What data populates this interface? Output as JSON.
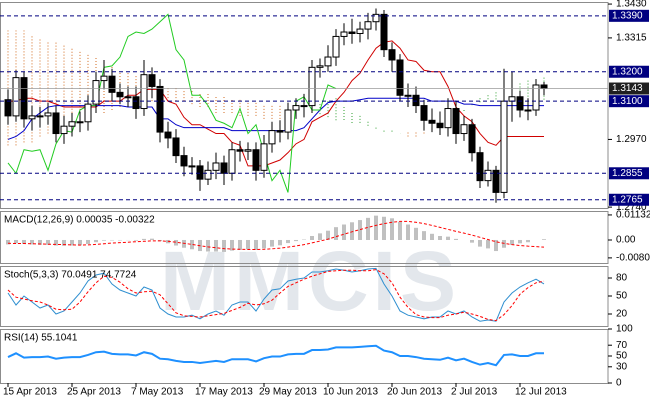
{
  "chart_data": [
    {
      "type": "candlestick",
      "watermark": "MMCIS",
      "categories": [
        "15 Apr 2013",
        null,
        null,
        null,
        null,
        null,
        null,
        null,
        "25 Apr 2013",
        null,
        null,
        null,
        null,
        null,
        null,
        null,
        "7 May 2013",
        null,
        null,
        null,
        null,
        null,
        null,
        null,
        "17 May 2013",
        null,
        null,
        null,
        null,
        null,
        null,
        null,
        "29 May 2013",
        null,
        null,
        null,
        null,
        null,
        null,
        null,
        "10 Jun 2013",
        null,
        null,
        null,
        null,
        null,
        null,
        null,
        "20 Jun 2013",
        null,
        null,
        null,
        null,
        null,
        null,
        null,
        "2 Jul 2013",
        null,
        null,
        null,
        null,
        null,
        null,
        null,
        "12 Jul 2013",
        null,
        null,
        null
      ],
      "open": [
        1.3105,
        1.305,
        1.318,
        1.304,
        1.305,
        1.305,
        1.306,
        1.299,
        1.3015,
        1.303,
        1.303,
        1.309,
        1.317,
        1.3185,
        1.313,
        1.3115,
        1.3115,
        1.3075,
        1.319,
        1.315,
        1.2995,
        1.2975,
        1.2915,
        1.288,
        1.288,
        1.2835,
        1.2865,
        1.289,
        1.2855,
        1.2935,
        1.293,
        1.2935,
        1.2865,
        1.2955,
        1.3,
        1.2995,
        1.307,
        1.3085,
        1.3085,
        1.3215,
        1.322,
        1.325,
        1.332,
        1.3335,
        1.333,
        1.3345,
        1.337,
        1.3395,
        1.3275,
        1.324,
        1.312,
        1.312,
        1.3085,
        1.3035,
        1.3025,
        1.301,
        1.3075,
        1.299,
        1.302,
        1.2925,
        1.283,
        1.2865,
        1.279,
        1.31,
        1.3115,
        1.307,
        1.307,
        1.3155
      ],
      "high": [
        1.314,
        1.3205,
        1.32,
        1.3085,
        1.308,
        1.3095,
        1.3085,
        1.305,
        1.306,
        1.3065,
        1.312,
        1.32,
        1.324,
        1.321,
        1.316,
        1.315,
        1.315,
        1.324,
        1.3215,
        1.3175,
        1.303,
        1.3005,
        1.2945,
        1.291,
        1.29,
        1.2895,
        1.2925,
        1.2915,
        1.296,
        1.2965,
        1.296,
        1.296,
        1.2985,
        1.303,
        1.3035,
        1.3095,
        1.311,
        1.3125,
        1.324,
        1.3245,
        1.329,
        1.3345,
        1.3365,
        1.338,
        1.337,
        1.34,
        1.3415,
        1.341,
        1.33,
        1.326,
        1.316,
        1.315,
        1.3105,
        1.3075,
        1.3065,
        1.311,
        1.31,
        1.305,
        1.304,
        1.2945,
        1.2895,
        1.288,
        1.321,
        1.32,
        1.3135,
        1.311,
        1.3175,
        1.3165
      ],
      "low": [
        1.302,
        1.303,
        1.301,
        1.3,
        1.301,
        1.302,
        1.296,
        1.2955,
        1.298,
        1.2995,
        1.3,
        1.306,
        1.314,
        1.31,
        1.309,
        1.308,
        1.304,
        1.305,
        1.311,
        1.296,
        1.294,
        1.289,
        1.2845,
        1.285,
        1.2795,
        1.2815,
        1.2835,
        1.2815,
        1.283,
        1.2895,
        1.29,
        1.283,
        1.284,
        1.2925,
        1.296,
        1.297,
        1.304,
        1.3045,
        1.306,
        1.318,
        1.32,
        1.322,
        1.329,
        1.3295,
        1.33,
        1.331,
        1.334,
        1.325,
        1.32,
        1.31,
        1.308,
        1.306,
        1.3,
        1.2995,
        1.2985,
        1.298,
        1.2955,
        1.2965,
        1.2895,
        1.2805,
        1.281,
        1.2755,
        1.277,
        1.303,
        1.3045,
        1.3035,
        1.305,
        1.312
      ],
      "close": [
        1.305,
        1.318,
        1.304,
        1.305,
        1.305,
        1.306,
        1.299,
        1.3015,
        1.303,
        1.303,
        1.309,
        1.317,
        1.3185,
        1.313,
        1.3115,
        1.3115,
        1.3075,
        1.319,
        1.315,
        1.2995,
        1.2975,
        1.2915,
        1.288,
        1.288,
        1.2835,
        1.2865,
        1.289,
        1.2855,
        1.2935,
        1.293,
        1.2935,
        1.2865,
        1.2955,
        1.3,
        1.2995,
        1.307,
        1.3085,
        1.3085,
        1.3215,
        1.322,
        1.325,
        1.332,
        1.3335,
        1.333,
        1.3345,
        1.337,
        1.3395,
        1.3275,
        1.324,
        1.312,
        1.312,
        1.3085,
        1.3035,
        1.3025,
        1.301,
        1.3075,
        1.299,
        1.302,
        1.2925,
        1.283,
        1.2865,
        1.279,
        1.31,
        1.3115,
        1.307,
        1.307,
        1.3155,
        1.3143
      ],
      "up_color": "#ffffff",
      "down_color": "#000000",
      "cloud": {
        "up_color": "#2e9e2e",
        "down_color": "#d2691e",
        "span_a": [
          1.295,
          1.295,
          1.296,
          1.296,
          1.298,
          1.299,
          1.3,
          1.301,
          1.303,
          1.304,
          1.305,
          1.306,
          1.306,
          1.307,
          1.308,
          1.309,
          1.309,
          1.31,
          1.31,
          1.31,
          1.31,
          1.31,
          1.31,
          1.309,
          1.308,
          1.308,
          1.306,
          1.306,
          1.306,
          1.305,
          1.305,
          1.305,
          1.304,
          1.304,
          1.304,
          1.305,
          1.306,
          1.307,
          1.308,
          1.309,
          1.31,
          1.311,
          1.308,
          1.306,
          1.305,
          1.303,
          1.301,
          1.3,
          1.3,
          1.299,
          1.298,
          1.298,
          1.299,
          1.3,
          1.301,
          1.303,
          1.305,
          1.307,
          1.309,
          1.311,
          1.312,
          1.313,
          1.314,
          1.315,
          1.316,
          1.317,
          1.3175,
          1.318
        ],
        "span_b": [
          1.334,
          1.334,
          1.334,
          1.332,
          1.331,
          1.33,
          1.33,
          1.329,
          1.328,
          1.327,
          1.326,
          1.325,
          1.323,
          1.322,
          1.32,
          1.32,
          1.319,
          1.318,
          1.317,
          1.316,
          1.315,
          1.315,
          1.314,
          1.314,
          1.313,
          1.313,
          1.312,
          1.312,
          1.311,
          1.311,
          1.31,
          1.31,
          1.309,
          1.309,
          1.3085,
          1.308,
          1.308,
          1.307,
          1.306,
          1.305,
          1.304,
          1.303,
          1.303,
          1.302,
          1.302,
          1.301,
          1.3,
          1.299,
          1.299,
          1.299,
          1.3,
          1.3,
          1.301,
          1.302,
          1.303,
          1.304,
          1.305,
          1.306,
          1.308,
          1.309,
          1.31,
          1.31,
          1.31,
          1.31,
          1.31,
          1.31,
          1.31,
          1.31
        ]
      },
      "lines": [
        {
          "color": "#d00000",
          "values": [
            1.31,
            1.31,
            1.311,
            1.311,
            1.31,
            1.31,
            1.309,
            1.308,
            1.308,
            1.308,
            1.308,
            1.308,
            1.31,
            1.31,
            1.31,
            1.312,
            1.312,
            1.314,
            1.314,
            1.314,
            1.31,
            1.309,
            1.3045,
            1.302,
            1.302,
            1.3005,
            1.299,
            1.299,
            1.296,
            1.295,
            1.288,
            1.288,
            1.288,
            1.289,
            1.29,
            1.2925,
            1.2955,
            1.297,
            1.303,
            1.3045,
            1.306,
            1.31,
            1.313,
            1.317,
            1.3195,
            1.324,
            1.328,
            1.33,
            1.3305,
            1.328,
            1.324,
            1.3235,
            1.3205,
            1.32,
            1.32,
            1.315,
            1.308,
            1.305,
            1.303,
            1.299,
            1.296,
            1.295,
            1.298,
            1.298,
            1.298,
            1.298,
            1.298,
            1.298
          ]
        },
        {
          "color": "#0000c8",
          "values": [
            1.297,
            1.298,
            1.3,
            1.304,
            1.306,
            1.308,
            1.3085,
            1.3085,
            1.3085,
            1.3085,
            1.3085,
            1.3085,
            1.3085,
            1.3085,
            1.3085,
            1.308,
            1.308,
            1.308,
            1.308,
            1.304,
            1.304,
            1.302,
            1.301,
            1.301,
            1.301,
            1.301,
            1.301,
            1.301,
            1.3,
            1.3,
            1.3,
            1.3,
            1.3,
            1.3,
            1.3,
            1.3,
            1.3,
            1.301,
            1.304,
            1.307,
            1.3095,
            1.31,
            1.31,
            1.31,
            1.3105,
            1.311,
            1.311,
            1.311,
            1.311,
            1.311,
            1.311,
            1.311,
            1.311,
            1.31,
            1.31,
            1.31,
            1.31,
            1.309,
            1.309,
            1.3085,
            1.3085,
            1.3085,
            1.3085,
            1.3085,
            1.3085,
            1.3085,
            1.3085,
            1.3085
          ]
        },
        {
          "color": "#22cc22",
          "values": [
            1.289,
            1.2855,
            1.2935,
            1.293,
            1.2935,
            1.2865,
            1.2955,
            1.3,
            1.2995,
            1.307,
            1.3085,
            1.3085,
            1.3215,
            1.322,
            1.325,
            1.332,
            1.3335,
            1.333,
            1.3345,
            1.337,
            1.3395,
            1.3275,
            1.324,
            1.312,
            1.312,
            1.3085,
            1.3035,
            1.3025,
            1.301,
            1.3075,
            1.299,
            1.302,
            1.2925,
            1.283,
            1.2865,
            1.279,
            1.31,
            1.3115,
            1.307,
            1.307,
            1.3155,
            1.3143,
            null,
            null,
            null,
            null,
            null,
            null,
            null,
            null,
            null,
            null,
            null,
            null,
            null,
            null,
            null,
            null,
            null,
            null,
            null,
            null,
            null,
            null,
            null,
            null,
            null,
            null
          ]
        }
      ],
      "levels": [
        {
          "value": 1.339,
          "label": "1.3390"
        },
        {
          "value": 1.32,
          "label": "1.3200"
        },
        {
          "value": 1.31,
          "label": "1.3100"
        },
        1.2855,
        1.2765
      ],
      "level_color": "#000080",
      "last_price": 1.3143,
      "last_price_color": "#202020",
      "ylim": [
        1.2737,
        1.3437
      ],
      "yticks": [
        {
          "value": 1.343,
          "label": "1.3430"
        },
        1.3315,
        {
          "value": 1.297,
          "label": "1.2970"
        },
        {
          "value": 1.274,
          "label": "1.2740"
        }
      ]
    },
    {
      "type": "bar",
      "title": "MACD(12,26,9) 0.00035 -0.00322",
      "color": "#c0c0c0",
      "values": [
        -0.002,
        -0.0015,
        -0.0018,
        -0.002,
        -0.0022,
        -0.0022,
        -0.0025,
        -0.0026,
        -0.0025,
        -0.0024,
        -0.0018,
        -0.001,
        -0.0003,
        -0.0002,
        -0.0002,
        -0.0001,
        -0.0003,
        0.0005,
        0.0006,
        -0.0005,
        -0.0015,
        -0.0025,
        -0.0035,
        -0.0042,
        -0.005,
        -0.0052,
        -0.0052,
        -0.0054,
        -0.0048,
        -0.0045,
        -0.0042,
        -0.0045,
        -0.0038,
        -0.003,
        -0.0024,
        -0.0014,
        -0.0005,
        0.0002,
        0.0018,
        0.003,
        0.0042,
        0.0058,
        0.007,
        0.008,
        0.009,
        0.01,
        0.011,
        0.0105,
        0.0098,
        0.0082,
        0.007,
        0.0055,
        0.004,
        0.0028,
        0.0018,
        0.0015,
        0.0005,
        0.0,
        -0.0012,
        -0.003,
        -0.0038,
        -0.005,
        -0.0035,
        -0.0022,
        -0.0015,
        -0.001,
        0.0,
        0.00035
      ],
      "signal": {
        "color": "#ff0000",
        "values": [
          -0.0015,
          -0.0016,
          -0.0016,
          -0.0017,
          -0.0018,
          -0.0019,
          -0.002,
          -0.0021,
          -0.0022,
          -0.0023,
          -0.0022,
          -0.002,
          -0.0017,
          -0.0014,
          -0.0012,
          -0.001,
          -0.0008,
          -0.0006,
          -0.0004,
          -0.0004,
          -0.0006,
          -0.001,
          -0.0015,
          -0.002,
          -0.0026,
          -0.0031,
          -0.0035,
          -0.0039,
          -0.0041,
          -0.0042,
          -0.0043,
          -0.0043,
          -0.0042,
          -0.004,
          -0.0037,
          -0.0032,
          -0.0027,
          -0.0021,
          -0.0013,
          -0.0005,
          0.0004,
          0.0015,
          0.0026,
          0.0037,
          0.0047,
          0.0057,
          0.0066,
          0.0074,
          0.008,
          0.0084,
          0.0084,
          0.008,
          0.0074,
          0.0066,
          0.0057,
          0.0048,
          0.0039,
          0.0031,
          0.0022,
          0.0012,
          0.0002,
          -0.0008,
          -0.0015,
          -0.0021,
          -0.0025,
          -0.0028,
          -0.003,
          -0.00322
        ]
      },
      "ylim": [
        -0.0104,
        0.0131
      ],
      "yticks": [
        0.01132,
        {
          "value": 0,
          "label": "0.00"
        },
        -0.00809
      ]
    },
    {
      "type": "line",
      "title": "Stoch(5,3,3) 70.0491 74.7724",
      "series": [
        {
          "color": "#2f8fd0",
          "style": "solid",
          "values": [
            55,
            35,
            50,
            40,
            30,
            35,
            20,
            25,
            40,
            55,
            75,
            85,
            88,
            70,
            60,
            55,
            50,
            65,
            60,
            30,
            20,
            15,
            15,
            18,
            12,
            20,
            25,
            18,
            35,
            40,
            40,
            25,
            45,
            60,
            62,
            75,
            78,
            80,
            90,
            90,
            92,
            95,
            93,
            90,
            92,
            95,
            96,
            70,
            50,
            25,
            18,
            15,
            12,
            15,
            15,
            25,
            20,
            25,
            15,
            8,
            10,
            8,
            40,
            55,
            65,
            72,
            78,
            70.0491
          ]
        },
        {
          "color": "#ff0000",
          "style": "dashed",
          "values": [
            60,
            48,
            45,
            42,
            40,
            35,
            28,
            27,
            28,
            40,
            57,
            72,
            83,
            81,
            73,
            62,
            55,
            57,
            58,
            52,
            37,
            22,
            17,
            16,
            15,
            17,
            19,
            21,
            26,
            31,
            38,
            35,
            37,
            43,
            55,
            66,
            72,
            78,
            83,
            87,
            91,
            92,
            93,
            93,
            92,
            92,
            94,
            87,
            72,
            48,
            31,
            19,
            15,
            14,
            14,
            18,
            20,
            23,
            20,
            16,
            11,
            9,
            19,
            34,
            53,
            64,
            72,
            74.7724
          ]
        }
      ],
      "ylim": [
        0,
        100
      ],
      "yticks": [
        80,
        50,
        20
      ]
    },
    {
      "type": "line",
      "title": "RSI(14) 55.1041",
      "series": [
        {
          "color": "#1e90ff",
          "style": "thick",
          "values": [
            48,
            55,
            47,
            48,
            48,
            49,
            45,
            47,
            48,
            48,
            52,
            57,
            58,
            54,
            53,
            53,
            51,
            57,
            54,
            45,
            44,
            41,
            39,
            39,
            37,
            39,
            41,
            39,
            44,
            44,
            44,
            40,
            46,
            49,
            49,
            53,
            54,
            54,
            61,
            61,
            62,
            66,
            66,
            66,
            67,
            68,
            69,
            60,
            57,
            50,
            50,
            48,
            45,
            44,
            43,
            47,
            42,
            45,
            39,
            34,
            37,
            33,
            52,
            53,
            50,
            50,
            55,
            55.1041
          ]
        }
      ],
      "ylim": [
        0,
        100
      ],
      "yticks": [
        100,
        70,
        50,
        30,
        0
      ]
    }
  ]
}
